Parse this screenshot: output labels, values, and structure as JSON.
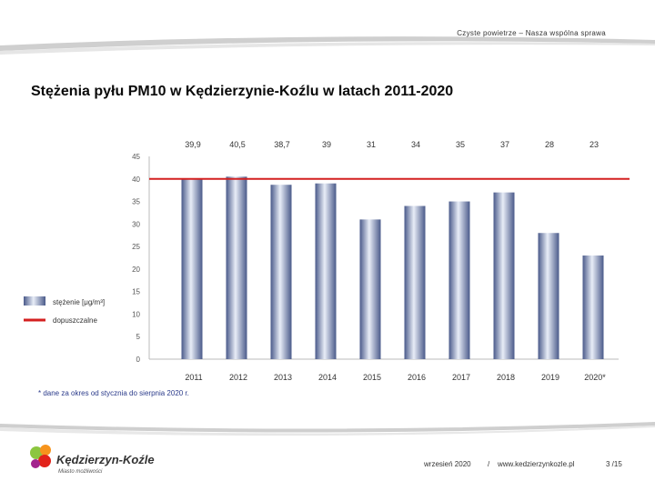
{
  "header": {
    "slogan": "Czyste powietrze – Nasza wspólna sprawa"
  },
  "slide": {
    "title": "Stężenia pyłu PM10 w Kędzierzynie-Koźlu w latach 2011-2020"
  },
  "chart_data": {
    "type": "bar",
    "categories": [
      "2011",
      "2012",
      "2013",
      "2014",
      "2015",
      "2016",
      "2017",
      "2018",
      "2019",
      "2020*"
    ],
    "value_labels": [
      "39,9",
      "40,5",
      "38,7",
      "39",
      "31",
      "34",
      "35",
      "37",
      "28",
      "23"
    ],
    "series": [
      {
        "name": "stężenie [μg/m³]",
        "type": "bar",
        "values": [
          39.9,
          40.5,
          38.7,
          39,
          31,
          34,
          35,
          37,
          28,
          23
        ]
      },
      {
        "name": "dopuszczalne",
        "type": "line",
        "value": 40
      }
    ],
    "ylim": [
      0,
      45
    ],
    "yticks": [
      "0",
      "5",
      "10",
      "15",
      "20",
      "25",
      "30",
      "35",
      "40",
      "45"
    ],
    "grid": false,
    "legend": "left",
    "colors": {
      "bar": "#8a9cc8",
      "bar_dark": "#4a5a8a",
      "limit_line": "#d42020"
    }
  },
  "footnote": "* dane za okres od stycznia do sierpnia 2020 r.",
  "logo": {
    "name": "Kędzierzyn-Koźle",
    "tagline": "Miasto możliwości"
  },
  "footer": {
    "date": "wrzesień 2020",
    "separator": "/",
    "url": "www.kedzierzynkozle.pl",
    "page": "3 /15"
  }
}
